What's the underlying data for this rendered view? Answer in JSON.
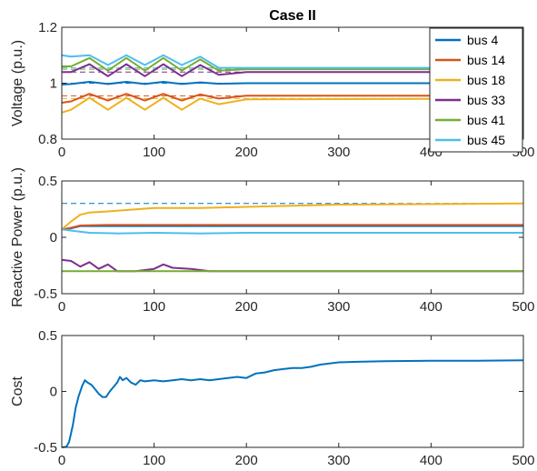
{
  "chart_data": [
    {
      "type": "line",
      "title": "Case II",
      "xlabel": "",
      "ylabel": "Voltage (p.u.)",
      "xlim": [
        0,
        500
      ],
      "ylim": [
        0.8,
        1.2
      ],
      "xticks": [
        "0",
        "100",
        "200",
        "300",
        "400",
        "500"
      ],
      "yticks": [
        "0.8",
        "1",
        "1.2"
      ],
      "legend": {
        "position": "top-right",
        "box": true
      },
      "series": [
        {
          "name": "bus 4",
          "color": "#0072BD",
          "points": [
            [
              0,
              0.995
            ],
            [
              10,
              0.997
            ],
            [
              30,
              1.005
            ],
            [
              50,
              0.997
            ],
            [
              70,
              1.005
            ],
            [
              90,
              0.997
            ],
            [
              110,
              1.005
            ],
            [
              130,
              0.997
            ],
            [
              150,
              1.003
            ],
            [
              170,
              0.998
            ],
            [
              200,
              1.0
            ],
            [
              500,
              1.0
            ]
          ]
        },
        {
          "name": "bus 14",
          "color": "#D95319",
          "points": [
            [
              0,
              0.93
            ],
            [
              10,
              0.935
            ],
            [
              30,
              0.962
            ],
            [
              50,
              0.938
            ],
            [
              70,
              0.962
            ],
            [
              90,
              0.938
            ],
            [
              110,
              0.962
            ],
            [
              130,
              0.938
            ],
            [
              150,
              0.96
            ],
            [
              170,
              0.945
            ],
            [
              200,
              0.955
            ],
            [
              500,
              0.955
            ]
          ]
        },
        {
          "name": "bus 18",
          "color": "#EDB120",
          "points": [
            [
              0,
              0.895
            ],
            [
              10,
              0.905
            ],
            [
              30,
              0.948
            ],
            [
              50,
              0.905
            ],
            [
              70,
              0.948
            ],
            [
              90,
              0.905
            ],
            [
              110,
              0.948
            ],
            [
              130,
              0.905
            ],
            [
              150,
              0.945
            ],
            [
              170,
              0.925
            ],
            [
              200,
              0.942
            ],
            [
              500,
              0.945
            ]
          ]
        },
        {
          "name": "bus 33",
          "color": "#7E2F8E",
          "points": [
            [
              0,
              1.04
            ],
            [
              10,
              1.04
            ],
            [
              30,
              1.068
            ],
            [
              50,
              1.025
            ],
            [
              70,
              1.068
            ],
            [
              90,
              1.025
            ],
            [
              110,
              1.068
            ],
            [
              130,
              1.025
            ],
            [
              150,
              1.065
            ],
            [
              170,
              1.03
            ],
            [
              200,
              1.04
            ],
            [
              500,
              1.04
            ]
          ]
        },
        {
          "name": "bus 41",
          "color": "#77AC30",
          "points": [
            [
              0,
              1.06
            ],
            [
              10,
              1.06
            ],
            [
              30,
              1.09
            ],
            [
              50,
              1.045
            ],
            [
              70,
              1.09
            ],
            [
              90,
              1.045
            ],
            [
              110,
              1.09
            ],
            [
              130,
              1.045
            ],
            [
              150,
              1.085
            ],
            [
              170,
              1.045
            ],
            [
              200,
              1.05
            ],
            [
              500,
              1.05
            ]
          ]
        },
        {
          "name": "bus 45",
          "color": "#4DBEEE",
          "points": [
            [
              0,
              1.1
            ],
            [
              10,
              1.095
            ],
            [
              30,
              1.1
            ],
            [
              50,
              1.065
            ],
            [
              70,
              1.1
            ],
            [
              90,
              1.065
            ],
            [
              110,
              1.1
            ],
            [
              130,
              1.065
            ],
            [
              150,
              1.095
            ],
            [
              170,
              1.055
            ],
            [
              200,
              1.055
            ],
            [
              500,
              1.055
            ]
          ]
        }
      ],
      "reference_lines": [
        {
          "color": "#0072BD",
          "value": 1.0
        },
        {
          "color": "#D95319",
          "value": 0.955
        },
        {
          "color": "#EDB120",
          "value": 0.945
        },
        {
          "color": "#7E2F8E",
          "value": 1.04
        },
        {
          "color": "#77AC30",
          "value": 1.05
        },
        {
          "color": "#4DBEEE",
          "value": 1.055
        }
      ]
    },
    {
      "type": "line",
      "title": "",
      "xlabel": "",
      "ylabel": "Reactive Power (p.u.)",
      "xlim": [
        0,
        500
      ],
      "ylim": [
        -0.5,
        0.5
      ],
      "xticks": [
        "0",
        "100",
        "200",
        "300",
        "400",
        "500"
      ],
      "yticks": [
        "-0.5",
        "0",
        "0.5"
      ],
      "series": [
        {
          "color": "#0072BD",
          "points": [
            [
              0,
              0.07
            ],
            [
              10,
              0.08
            ],
            [
              20,
              0.1
            ],
            [
              50,
              0.1
            ],
            [
              100,
              0.1
            ],
            [
              200,
              0.1
            ],
            [
              500,
              0.1
            ]
          ]
        },
        {
          "color": "#D95319",
          "points": [
            [
              0,
              0.07
            ],
            [
              10,
              0.085
            ],
            [
              20,
              0.105
            ],
            [
              50,
              0.11
            ],
            [
              100,
              0.11
            ],
            [
              200,
              0.11
            ],
            [
              500,
              0.11
            ]
          ]
        },
        {
          "color": "#EDB120",
          "points": [
            [
              0,
              0.07
            ],
            [
              10,
              0.14
            ],
            [
              20,
              0.2
            ],
            [
              30,
              0.22
            ],
            [
              50,
              0.23
            ],
            [
              100,
              0.26
            ],
            [
              150,
              0.26
            ],
            [
              200,
              0.27
            ],
            [
              250,
              0.28
            ],
            [
              300,
              0.29
            ],
            [
              500,
              0.3
            ]
          ]
        },
        {
          "color": "#7E2F8E",
          "points": [
            [
              0,
              -0.2
            ],
            [
              10,
              -0.21
            ],
            [
              20,
              -0.26
            ],
            [
              30,
              -0.22
            ],
            [
              40,
              -0.28
            ],
            [
              50,
              -0.24
            ],
            [
              60,
              -0.3
            ],
            [
              80,
              -0.3
            ],
            [
              100,
              -0.28
            ],
            [
              110,
              -0.24
            ],
            [
              120,
              -0.27
            ],
            [
              140,
              -0.28
            ],
            [
              160,
              -0.3
            ],
            [
              500,
              -0.3
            ]
          ]
        },
        {
          "color": "#77AC30",
          "points": [
            [
              0,
              -0.3
            ],
            [
              500,
              -0.3
            ]
          ]
        },
        {
          "color": "#4DBEEE",
          "points": [
            [
              0,
              0.07
            ],
            [
              10,
              0.06
            ],
            [
              30,
              0.04
            ],
            [
              60,
              0.035
            ],
            [
              100,
              0.04
            ],
            [
              150,
              0.035
            ],
            [
              200,
              0.04
            ],
            [
              500,
              0.04
            ]
          ]
        }
      ],
      "reference_lines": [
        {
          "color": "#0072BD",
          "value": 0.3
        },
        {
          "color": "#D95319",
          "value": -0.3
        }
      ]
    },
    {
      "type": "line",
      "title": "",
      "xlabel": "",
      "ylabel": "Cost",
      "xlim": [
        0,
        500
      ],
      "ylim": [
        -0.5,
        0.5
      ],
      "xticks": [
        "0",
        "100",
        "200",
        "300",
        "400",
        "500"
      ],
      "yticks": [
        "-0.5",
        "0",
        "0.5"
      ],
      "series": [
        {
          "color": "#0072BD",
          "points": [
            [
              0,
              -0.5
            ],
            [
              5,
              -0.495
            ],
            [
              8,
              -0.45
            ],
            [
              12,
              -0.3
            ],
            [
              15,
              -0.15
            ],
            [
              18,
              -0.05
            ],
            [
              22,
              0.05
            ],
            [
              25,
              0.1
            ],
            [
              28,
              0.08
            ],
            [
              32,
              0.06
            ],
            [
              36,
              0.02
            ],
            [
              40,
              -0.02
            ],
            [
              44,
              -0.05
            ],
            [
              48,
              -0.05
            ],
            [
              52,
              0.0
            ],
            [
              56,
              0.04
            ],
            [
              60,
              0.08
            ],
            [
              63,
              0.13
            ],
            [
              66,
              0.1
            ],
            [
              70,
              0.12
            ],
            [
              75,
              0.08
            ],
            [
              80,
              0.06
            ],
            [
              85,
              0.1
            ],
            [
              90,
              0.09
            ],
            [
              100,
              0.1
            ],
            [
              110,
              0.09
            ],
            [
              120,
              0.1
            ],
            [
              130,
              0.11
            ],
            [
              140,
              0.1
            ],
            [
              150,
              0.11
            ],
            [
              160,
              0.1
            ],
            [
              170,
              0.11
            ],
            [
              180,
              0.12
            ],
            [
              190,
              0.13
            ],
            [
              200,
              0.12
            ],
            [
              210,
              0.16
            ],
            [
              220,
              0.17
            ],
            [
              230,
              0.19
            ],
            [
              240,
              0.2
            ],
            [
              250,
              0.21
            ],
            [
              260,
              0.21
            ],
            [
              270,
              0.22
            ],
            [
              280,
              0.24
            ],
            [
              290,
              0.25
            ],
            [
              300,
              0.26
            ],
            [
              320,
              0.265
            ],
            [
              350,
              0.27
            ],
            [
              400,
              0.275
            ],
            [
              450,
              0.275
            ],
            [
              500,
              0.278
            ]
          ]
        }
      ]
    }
  ]
}
